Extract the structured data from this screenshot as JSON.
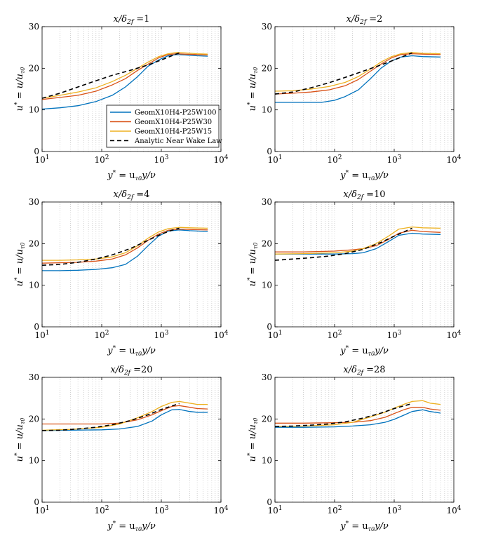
{
  "chart_data": {
    "type": "line",
    "x_scale": "log",
    "xlim": [
      10,
      10000
    ],
    "ylim": [
      0,
      30
    ],
    "y_ticks": [
      0,
      10,
      20,
      30
    ],
    "x_tick_labels": [
      {
        "base": "10",
        "exp": "1"
      },
      {
        "base": "10",
        "exp": "2"
      },
      {
        "base": "10",
        "exp": "3"
      },
      {
        "base": "10",
        "exp": "4"
      }
    ],
    "grid": "vertical dotted (log minor)",
    "xlabel": "y* = u_τ0 y/ν",
    "ylabel": "u* = u/u_τ0",
    "legend": {
      "placement": "in first panel, bottom-right",
      "entries": [
        {
          "name": "GeomX10H4-P25W100",
          "color": "#0072BD",
          "dash": false
        },
        {
          "name": "GeomX10H4-P25W30",
          "color": "#D95319",
          "dash": false
        },
        {
          "name": "GeomX10H4-P25W15",
          "color": "#EDB120",
          "dash": false
        },
        {
          "name": "Analytic Near Wake Law",
          "color": "#000000",
          "dash": true
        }
      ]
    },
    "panels": [
      {
        "title_value": "1",
        "series": [
          {
            "name": "GeomX10H4-P25W100",
            "x": [
              10,
              20,
              40,
              80,
              150,
              250,
              400,
              600,
              900,
              1300,
              1800,
              2500,
              4000,
              6000
            ],
            "y": [
              10.2,
              10.5,
              11.0,
              12.0,
              13.5,
              15.5,
              18.0,
              20.5,
              22.0,
              23.0,
              23.3,
              23.2,
              23.0,
              22.9
            ]
          },
          {
            "name": "GeomX10H4-P25W30",
            "x": [
              10,
              20,
              40,
              80,
              150,
              250,
              400,
              600,
              900,
              1300,
              1800,
              2500,
              4000,
              6000
            ],
            "y": [
              12.5,
              13.0,
              13.5,
              14.5,
              16.0,
              17.5,
              19.5,
              21.0,
              22.5,
              23.3,
              23.5,
              23.4,
              23.3,
              23.2
            ]
          },
          {
            "name": "GeomX10H4-P25W15",
            "x": [
              10,
              20,
              40,
              80,
              150,
              250,
              400,
              600,
              900,
              1300,
              1800,
              2500,
              4000,
              6000
            ],
            "y": [
              12.8,
              13.5,
              14.3,
              15.3,
              16.8,
              18.3,
              20.0,
              21.5,
              22.8,
              23.5,
              23.8,
              23.7,
              23.5,
              23.4
            ]
          },
          {
            "name": "Analytic Near Wake Law",
            "x": [
              10,
              20,
              40,
              80,
              150,
              300,
              600,
              1000,
              1500,
              2000
            ],
            "y": [
              12.8,
              14.0,
              15.5,
              17.0,
              18.3,
              19.5,
              20.8,
              22.0,
              23.0,
              23.7
            ]
          }
        ]
      },
      {
        "title_value": "2",
        "series": [
          {
            "name": "GeomX10H4-P25W100",
            "x": [
              10,
              20,
              40,
              60,
              100,
              150,
              250,
              400,
              600,
              900,
              1300,
              2000,
              3000,
              6000
            ],
            "y": [
              11.8,
              11.8,
              11.8,
              11.8,
              12.3,
              13.2,
              14.8,
              17.5,
              20.0,
              21.8,
              22.7,
              23.0,
              22.8,
              22.7
            ]
          },
          {
            "name": "GeomX10H4-P25W30",
            "x": [
              10,
              20,
              40,
              80,
              150,
              250,
              400,
              600,
              900,
              1300,
              2000,
              3000,
              6000
            ],
            "y": [
              13.8,
              14.0,
              14.3,
              14.8,
              15.8,
              17.3,
              19.3,
              21.0,
              22.5,
              23.3,
              23.5,
              23.4,
              23.3
            ]
          },
          {
            "name": "GeomX10H4-P25W15",
            "x": [
              10,
              20,
              40,
              80,
              150,
              250,
              400,
              600,
              900,
              1300,
              2000,
              3000,
              6000
            ],
            "y": [
              14.5,
              14.6,
              15.0,
              15.6,
              16.6,
              18.0,
              19.8,
              21.5,
              22.8,
              23.5,
              23.8,
              23.6,
              23.5
            ]
          },
          {
            "name": "Analytic Near Wake Law",
            "x": [
              10,
              20,
              40,
              80,
              150,
              300,
              600,
              1000,
              1500,
              2000
            ],
            "y": [
              13.8,
              14.3,
              15.3,
              16.5,
              17.8,
              19.3,
              20.8,
              22.0,
              23.0,
              23.7
            ]
          }
        ]
      },
      {
        "title_value": "4",
        "series": [
          {
            "name": "GeomX10H4-P25W100",
            "x": [
              10,
              20,
              40,
              80,
              150,
              250,
              400,
              600,
              900,
              1300,
              2000,
              3000,
              6000
            ],
            "y": [
              13.5,
              13.5,
              13.6,
              13.8,
              14.2,
              15.0,
              17.0,
              19.5,
              21.8,
              23.0,
              23.3,
              23.1,
              22.9
            ]
          },
          {
            "name": "GeomX10H4-P25W30",
            "x": [
              10,
              20,
              40,
              80,
              150,
              250,
              400,
              600,
              900,
              1300,
              2000,
              3000,
              6000
            ],
            "y": [
              15.3,
              15.4,
              15.5,
              15.8,
              16.3,
              17.3,
              19.0,
              20.8,
              22.3,
              23.2,
              23.5,
              23.4,
              23.3
            ]
          },
          {
            "name": "GeomX10H4-P25W15",
            "x": [
              10,
              20,
              40,
              80,
              150,
              250,
              400,
              600,
              900,
              1300,
              2000,
              3000,
              6000
            ],
            "y": [
              16.0,
              16.0,
              16.1,
              16.3,
              16.8,
              17.8,
              19.5,
              21.3,
              22.8,
              23.6,
              23.9,
              23.8,
              23.7
            ]
          },
          {
            "name": "Analytic Near Wake Law",
            "x": [
              10,
              20,
              40,
              80,
              150,
              300,
              600,
              1000,
              1500,
              2000
            ],
            "y": [
              14.8,
              15.0,
              15.5,
              16.3,
              17.3,
              18.8,
              20.8,
              22.3,
              23.2,
              23.7
            ]
          }
        ]
      },
      {
        "title_value": "10",
        "series": [
          {
            "name": "GeomX10H4-P25W100",
            "x": [
              10,
              30,
              100,
              200,
              300,
              500,
              800,
              1200,
              2000,
              3000,
              6000
            ],
            "y": [
              17.5,
              17.5,
              17.5,
              17.6,
              17.8,
              18.8,
              20.5,
              22.0,
              22.5,
              22.3,
              22.2
            ]
          },
          {
            "name": "GeomX10H4-P25W30",
            "x": [
              10,
              30,
              100,
              200,
              300,
              500,
              800,
              1200,
              2000,
              3000,
              6000
            ],
            "y": [
              18.0,
              18.0,
              18.2,
              18.5,
              18.8,
              19.5,
              21.0,
              22.5,
              23.2,
              22.9,
              22.7
            ]
          },
          {
            "name": "GeomX10H4-P25W15",
            "x": [
              10,
              30,
              100,
              200,
              300,
              500,
              800,
              1200,
              2000,
              3000,
              6000
            ],
            "y": [
              17.5,
              17.6,
              17.8,
              18.2,
              18.8,
              20.0,
              21.8,
              23.5,
              24.0,
              23.8,
              23.7
            ]
          },
          {
            "name": "Analytic Near Wake Law",
            "x": [
              10,
              20,
              40,
              80,
              150,
              300,
              600,
              1000,
              2000
            ],
            "y": [
              16.0,
              16.3,
              16.6,
              17.0,
              17.6,
              18.6,
              20.3,
              21.8,
              23.7
            ]
          }
        ]
      },
      {
        "title_value": "20",
        "series": [
          {
            "name": "GeomX10H4-P25W100",
            "x": [
              10,
              30,
              100,
              200,
              400,
              700,
              1000,
              1500,
              2000,
              3000,
              4000,
              6000
            ],
            "y": [
              17.2,
              17.3,
              17.4,
              17.6,
              18.2,
              19.5,
              21.0,
              22.2,
              22.3,
              21.8,
              21.6,
              21.6
            ]
          },
          {
            "name": "GeomX10H4-P25W30",
            "x": [
              10,
              30,
              100,
              200,
              400,
              700,
              1000,
              1500,
              2000,
              3000,
              4000,
              6000
            ],
            "y": [
              18.8,
              18.8,
              18.8,
              19.0,
              19.8,
              21.0,
              22.0,
              23.0,
              23.2,
              22.8,
              22.5,
              22.4
            ]
          },
          {
            "name": "GeomX10H4-P25W15",
            "x": [
              10,
              30,
              100,
              200,
              400,
              700,
              1000,
              1500,
              2000,
              3000,
              4000,
              6000
            ],
            "y": [
              17.3,
              17.5,
              18.0,
              18.8,
              20.3,
              21.8,
              23.0,
              24.0,
              24.2,
              23.8,
              23.5,
              23.5
            ]
          },
          {
            "name": "Analytic Near Wake Law",
            "x": [
              10,
              20,
              40,
              80,
              150,
              300,
              600,
              1000,
              2000
            ],
            "y": [
              17.2,
              17.3,
              17.6,
              18.0,
              18.6,
              19.6,
              21.0,
              22.3,
              23.7
            ]
          }
        ]
      },
      {
        "title_value": "28",
        "series": [
          {
            "name": "GeomX10H4-P25W100",
            "x": [
              10,
              30,
              100,
              200,
              400,
              700,
              1000,
              1500,
              2000,
              3000,
              4000,
              6000
            ],
            "y": [
              18.0,
              18.0,
              18.1,
              18.3,
              18.6,
              19.2,
              19.9,
              21.0,
              21.8,
              22.2,
              21.8,
              21.4
            ]
          },
          {
            "name": "GeomX10H4-P25W30",
            "x": [
              10,
              30,
              100,
              200,
              400,
              700,
              1000,
              1500,
              2000,
              3000,
              4000,
              6000
            ],
            "y": [
              19.0,
              19.0,
              19.1,
              19.2,
              19.6,
              20.4,
              21.3,
              22.3,
              22.8,
              22.8,
              22.4,
              22.1
            ]
          },
          {
            "name": "GeomX10H4-P25W15",
            "x": [
              10,
              30,
              100,
              200,
              400,
              700,
              1000,
              1500,
              2000,
              3000,
              4000,
              6000
            ],
            "y": [
              18.2,
              18.3,
              18.6,
              19.2,
              20.5,
              21.6,
              22.6,
              23.6,
              24.2,
              24.4,
              23.8,
              23.5
            ]
          },
          {
            "name": "Analytic Near Wake Law",
            "x": [
              10,
              20,
              40,
              80,
              150,
              300,
              600,
              1000,
              2000
            ],
            "y": [
              18.2,
              18.3,
              18.5,
              18.8,
              19.3,
              20.2,
              21.4,
              22.5,
              23.7
            ]
          }
        ]
      }
    ]
  }
}
